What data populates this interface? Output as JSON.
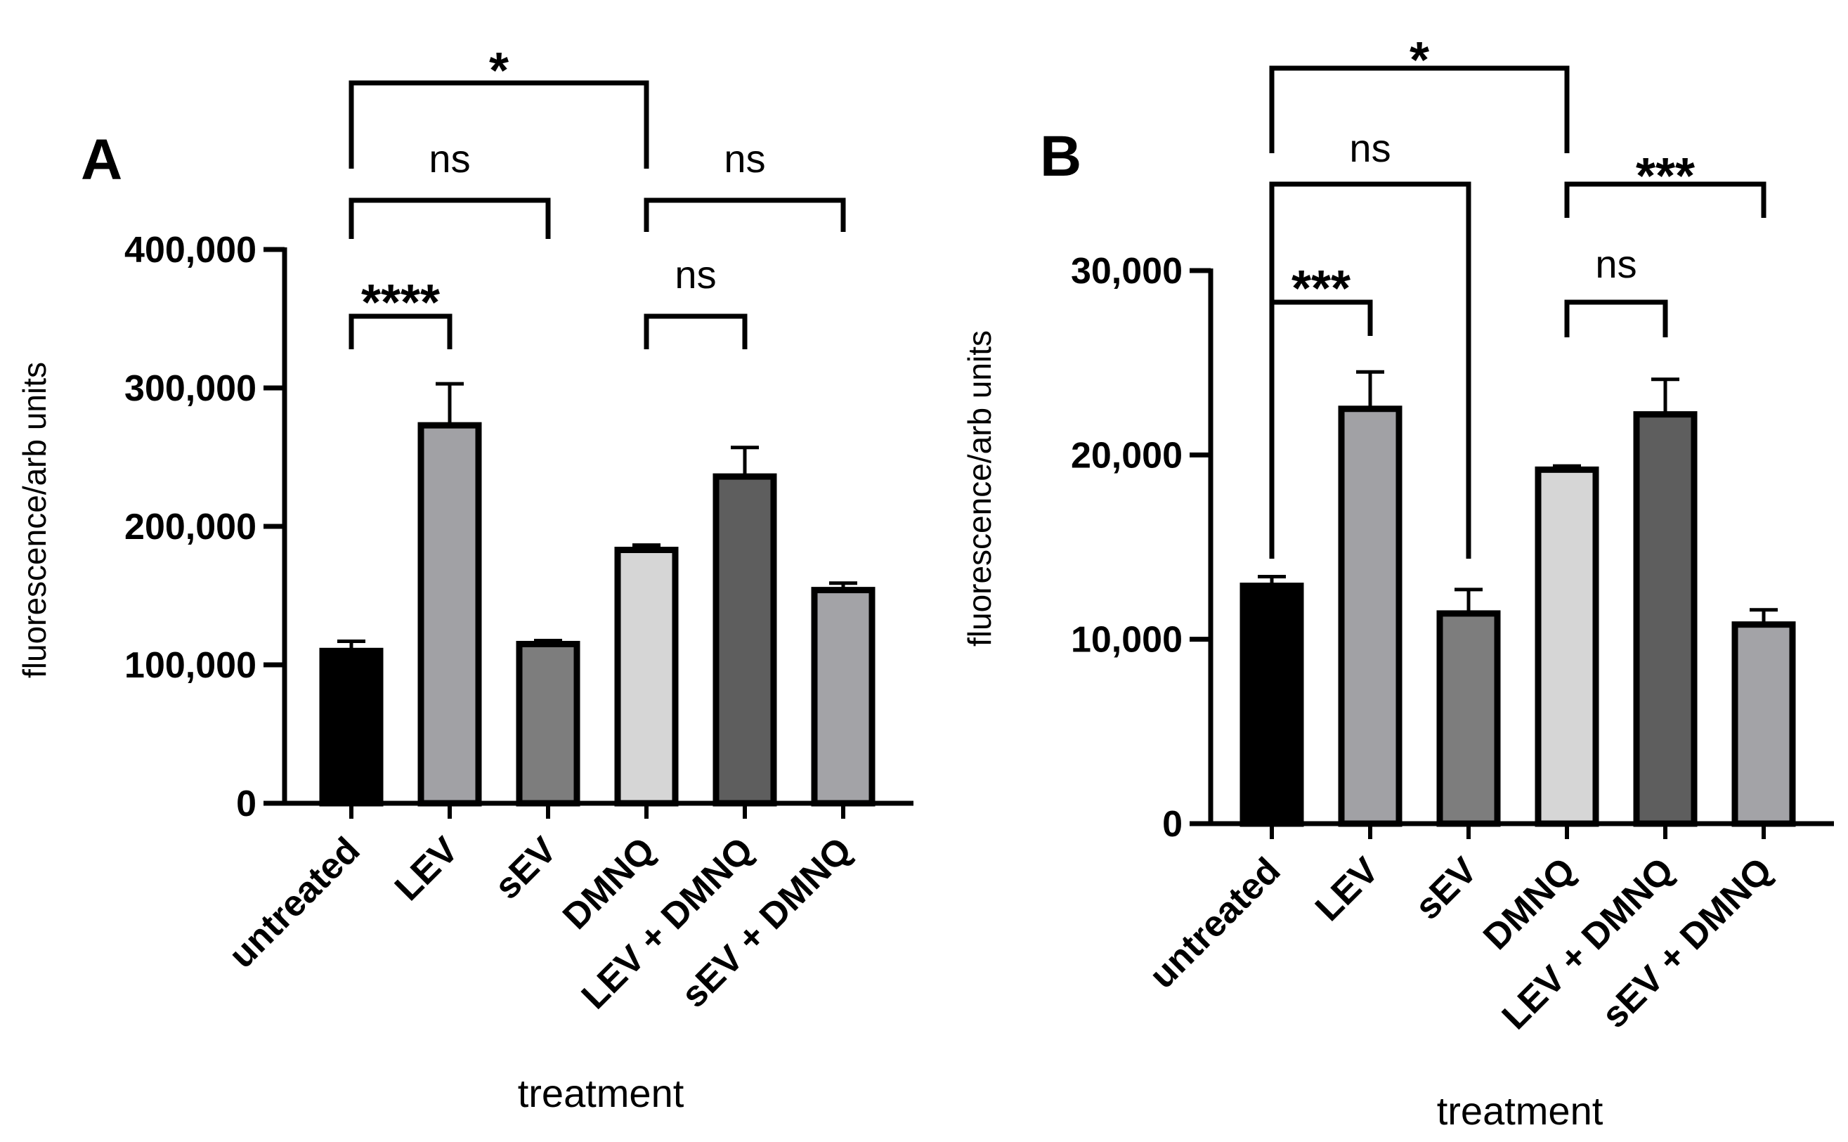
{
  "colors": {
    "untreated": "#000000",
    "LEV": "#a1a1a5",
    "sEV": "#7d7d7d",
    "DMNQ": "#d6d6d6",
    "LEV + DMNQ": "#5e5e5e",
    "sEV + DMNQ": "#a3a3a7",
    "stroke": "#000000"
  },
  "chart_data": [
    {
      "type": "bar",
      "panel_label": "A",
      "categories": [
        "untreated",
        "LEV",
        "sEV",
        "DMNQ",
        "LEV + DMNQ",
        "sEV + DMNQ"
      ],
      "values": [
        110000,
        273000,
        115000,
        183000,
        236000,
        154000
      ],
      "errors": [
        7000,
        30000,
        2500,
        3500,
        21000,
        5000
      ],
      "xlabel": "treatment",
      "ylabel": "fluorescence/arb units",
      "ylim": [
        0,
        400000
      ],
      "yticks": [
        0,
        100000,
        200000,
        300000,
        400000
      ],
      "ytick_labels": [
        "0",
        "100,000",
        "200,000",
        "300,000",
        "400,000"
      ],
      "significance": [
        {
          "from": "untreated",
          "to": "LEV",
          "label": "****"
        },
        {
          "from": "DMNQ",
          "to": "LEV + DMNQ",
          "label": "ns"
        },
        {
          "from": "untreated",
          "to": "sEV",
          "label": "ns"
        },
        {
          "from": "DMNQ",
          "to": "sEV + DMNQ",
          "label": "ns"
        },
        {
          "from": "untreated",
          "to": "DMNQ",
          "label": "*"
        }
      ]
    },
    {
      "type": "bar",
      "panel_label": "B",
      "categories": [
        "untreated",
        "LEV",
        "sEV",
        "DMNQ",
        "LEV + DMNQ",
        "sEV + DMNQ"
      ],
      "values": [
        12900,
        22500,
        11400,
        19200,
        22200,
        10800
      ],
      "errors": [
        500,
        2000,
        1300,
        200,
        1900,
        800
      ],
      "xlabel": "treatment",
      "ylabel": "fluorescence/arb units",
      "ylim": [
        0,
        30000
      ],
      "yticks": [
        0,
        10000,
        20000,
        30000
      ],
      "ytick_labels": [
        "0",
        "10,000",
        "20,000",
        "30,000"
      ],
      "significance": [
        {
          "from": "untreated",
          "to": "LEV",
          "label": "***"
        },
        {
          "from": "DMNQ",
          "to": "LEV + DMNQ",
          "label": "ns"
        },
        {
          "from": "untreated",
          "to": "sEV",
          "label": "ns"
        },
        {
          "from": "DMNQ",
          "to": "sEV + DMNQ",
          "label": "***"
        },
        {
          "from": "untreated",
          "to": "DMNQ",
          "label": "*"
        }
      ]
    }
  ]
}
